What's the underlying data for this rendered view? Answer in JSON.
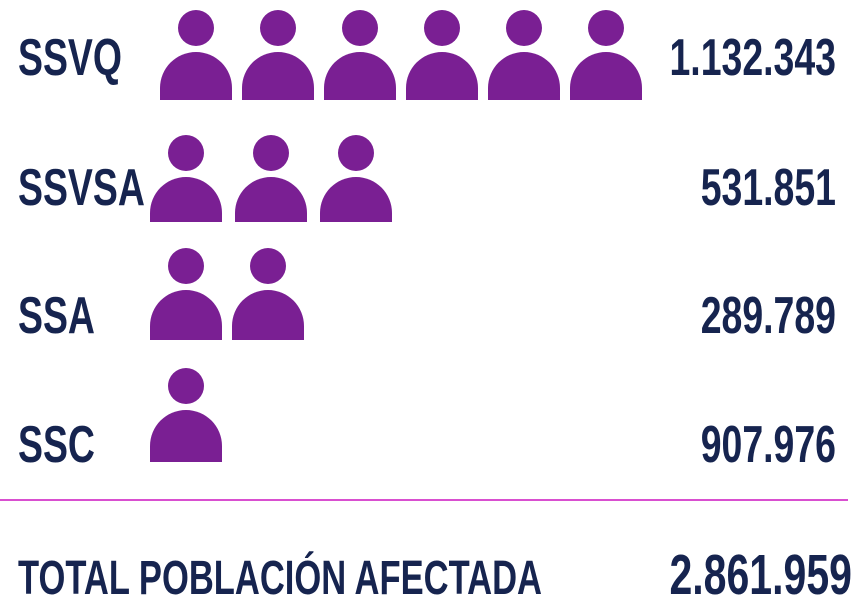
{
  "rows": [
    {
      "label": "SSVQ",
      "value": "1.132.343",
      "icons": 6
    },
    {
      "label": "SSVSA",
      "value": "531.851",
      "icons": 3
    },
    {
      "label": "SSA",
      "value": "289.789",
      "icons": 2
    },
    {
      "label": "SSC",
      "value": "907.976",
      "icons": 1
    }
  ],
  "total": {
    "label": "TOTAL POBLACIÓN AFECTADA",
    "value": "2.861.959"
  }
}
